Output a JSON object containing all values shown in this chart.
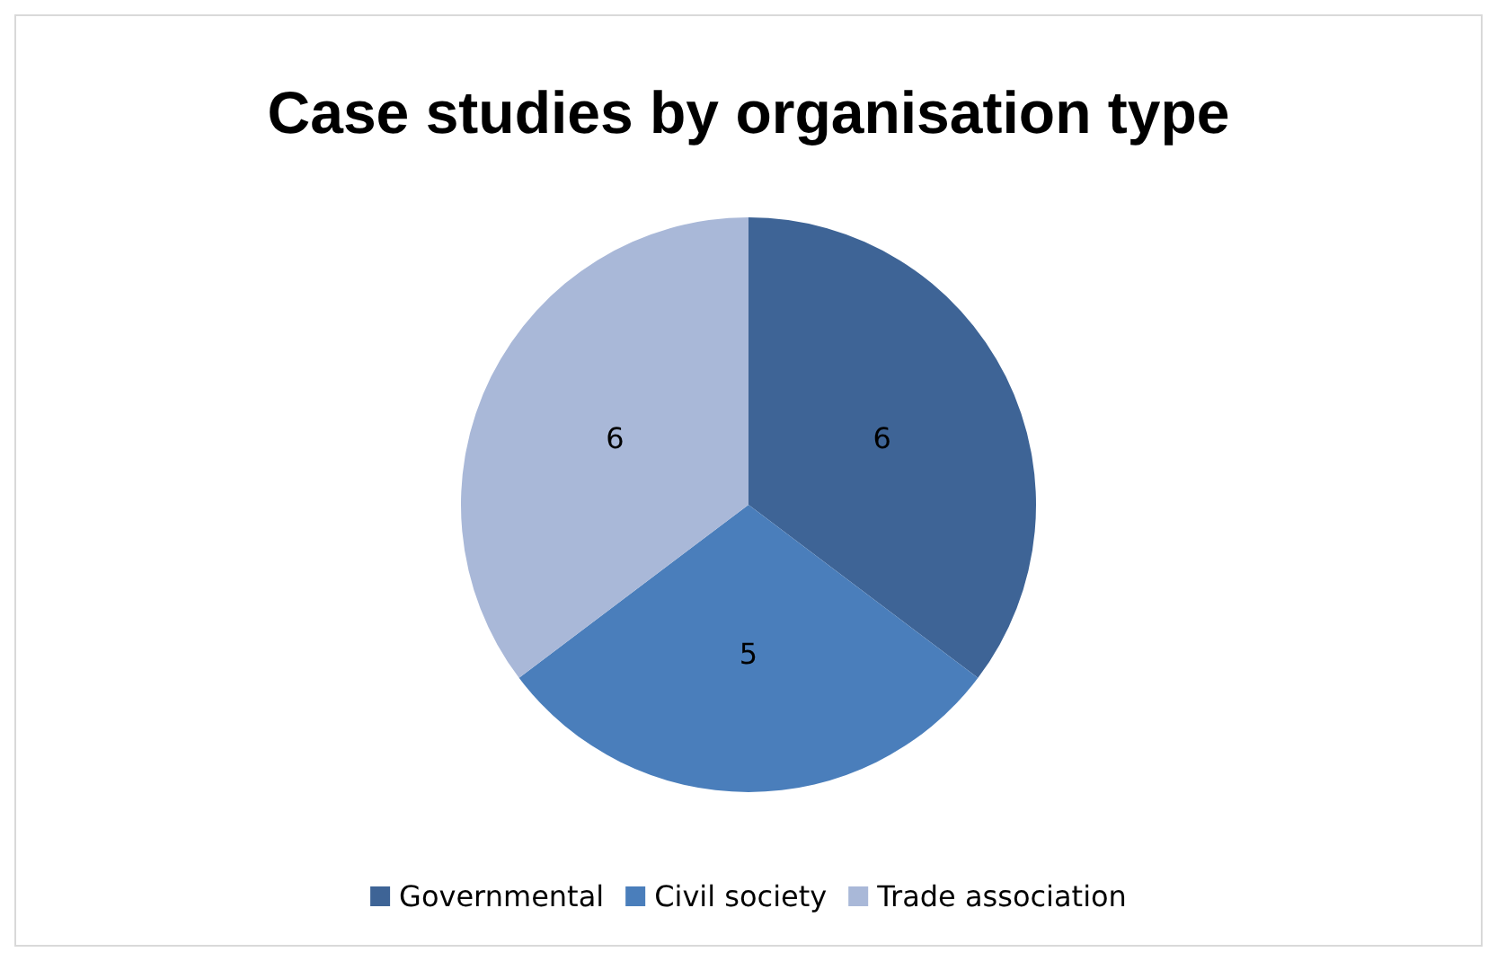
{
  "chart_data": {
    "type": "pie",
    "title": "Case studies by organisation type",
    "categories": [
      "Governmental",
      "Civil society",
      "Trade association"
    ],
    "values": [
      6,
      5,
      6
    ],
    "colors": [
      "#3e6496",
      "#4a7ebb",
      "#a9b8d8"
    ],
    "data_labels": true,
    "legend": "bottom"
  }
}
